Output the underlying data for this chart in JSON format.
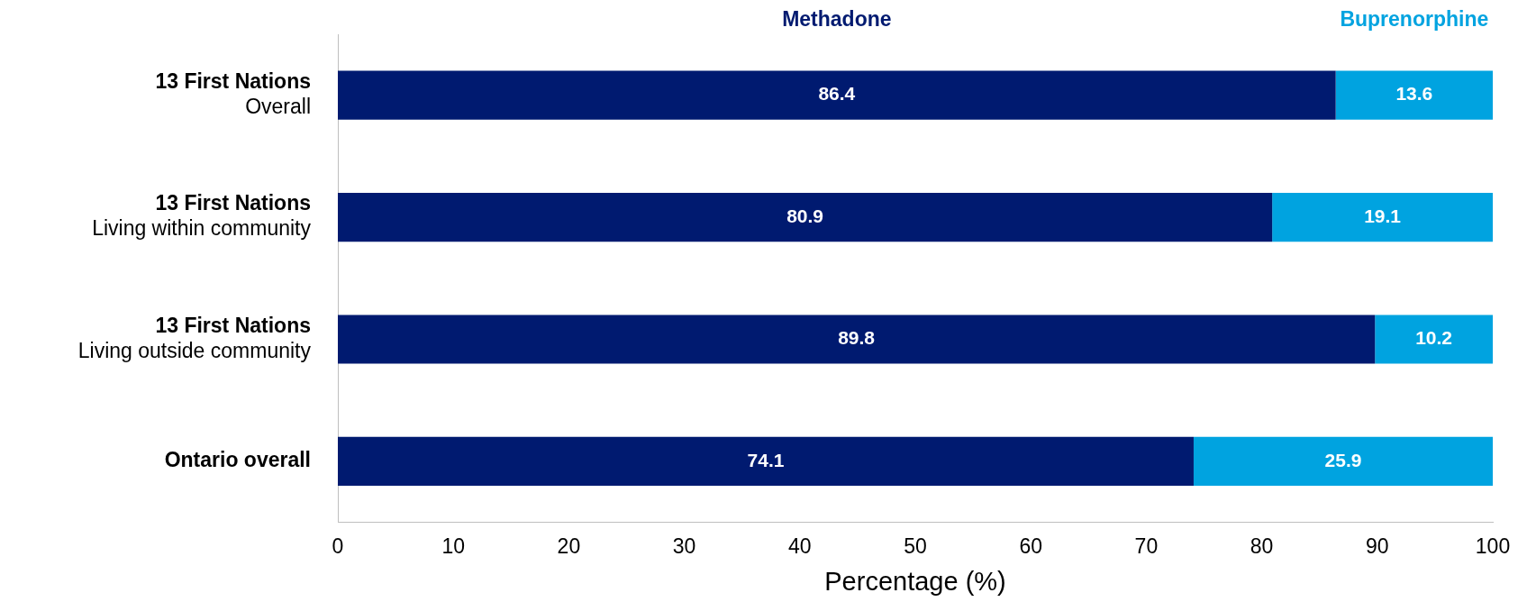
{
  "chart_data": {
    "type": "bar",
    "orientation": "horizontal",
    "stacked": true,
    "xlabel": "Percentage (%)",
    "categories": [
      "13 First Nations\nOverall",
      "13 First Nations\nLiving within community",
      "13 First Nations\nLiving outside community",
      "Ontario overall"
    ],
    "series": [
      {
        "name": "Methadone",
        "color": "#001a70",
        "values": [
          86.4,
          80.9,
          89.8,
          74.1
        ]
      },
      {
        "name": "Buprenorphine",
        "color": "#00a3e0",
        "values": [
          13.6,
          19.1,
          10.2,
          25.9
        ]
      }
    ],
    "xlim": [
      0,
      100
    ],
    "xticks": [
      0,
      10,
      20,
      30,
      40,
      50,
      60,
      70,
      80,
      90,
      100
    ],
    "grid": false,
    "legend": "top",
    "data_labels": true
  }
}
